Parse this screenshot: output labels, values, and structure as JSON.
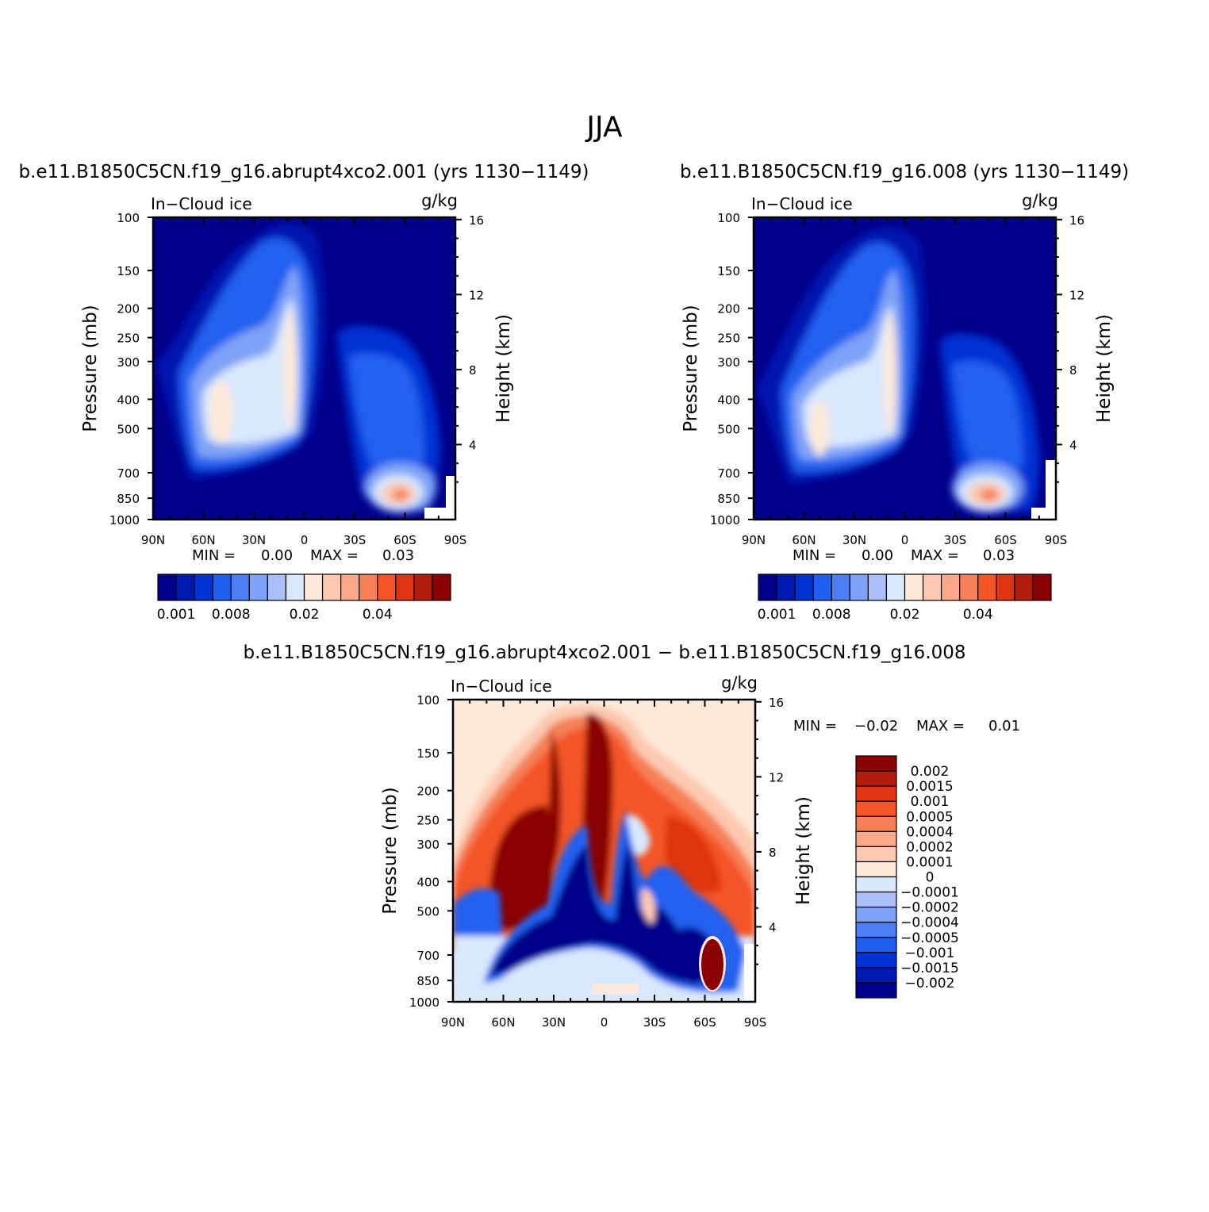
{
  "page_title": "JJA",
  "panels": [
    {
      "title": "b.e11.B1850C5CN.f19_g16.abrupt4xco2.001 (yrs 1130−1149)",
      "left_label": "In−Cloud ice",
      "right_label": "g/kg",
      "stats": {
        "min_label": "MIN =",
        "min_value": "0.00",
        "max_label": "MAX =",
        "max_value": "0.03"
      }
    },
    {
      "title": "b.e11.B1850C5CN.f19_g16.008 (yrs 1130−1149)",
      "left_label": "In−Cloud ice",
      "right_label": "g/kg",
      "stats": {
        "min_label": "MIN =",
        "min_value": "0.00",
        "max_label": "MAX =",
        "max_value": "0.03"
      }
    },
    {
      "title": "b.e11.B1850C5CN.f19_g16.abrupt4xco2.001 − b.e11.B1850C5CN.f19_g16.008",
      "left_label": "In−Cloud ice",
      "right_label": "g/kg",
      "stats": {
        "min_label": "MIN =",
        "min_value": "−0.02",
        "max_label": "MAX =",
        "max_value": "0.01"
      }
    }
  ],
  "axes": {
    "x_ticks": [
      "90N",
      "60N",
      "30N",
      "0",
      "30S",
      "60S",
      "90S"
    ],
    "y_label": "Pressure (mb)",
    "y_ticks": [
      "100",
      "150",
      "200",
      "250",
      "300",
      "400",
      "500",
      "700",
      "850",
      "1000"
    ],
    "y2_label": "Height (km)",
    "y2_ticks": [
      "16",
      "12",
      "8",
      "4"
    ]
  },
  "colorbars": {
    "horizontal": {
      "colors": [
        "#00008b",
        "#0019b0",
        "#0033d4",
        "#2060f0",
        "#4b80f5",
        "#7ea2f7",
        "#aabff8",
        "#d8e8fd",
        "#fee8d8",
        "#fcc9b0",
        "#fca888",
        "#f67f57",
        "#f45426",
        "#de3411",
        "#b41d0b",
        "#8b0000"
      ],
      "labels": [
        "0.001",
        "0.008",
        "0.02",
        "0.04"
      ]
    },
    "vertical": {
      "colors": [
        "#8b0000",
        "#b41d0b",
        "#de3411",
        "#f45426",
        "#f67f57",
        "#fca888",
        "#fcc9b0",
        "#fee8d8",
        "#d8e8fd",
        "#aabff8",
        "#7ea2f7",
        "#4b80f5",
        "#2060f0",
        "#0033d4",
        "#0019b0",
        "#00008b"
      ],
      "labels": [
        "0.002",
        "0.0015",
        "0.001",
        "0.0005",
        "0.0004",
        "0.0002",
        "0.0001",
        "0",
        "−0.0001",
        "−0.0002",
        "−0.0004",
        "−0.0005",
        "−0.001",
        "−0.0015",
        "−0.002"
      ]
    }
  },
  "chart_data": [
    {
      "type": "heatmap",
      "title": "b.e11.B1850C5CN.f19_g16.abrupt4xco2.001 (yrs 1130−1149)",
      "field": "In−Cloud ice",
      "units": "g/kg",
      "x_ticks": [
        "90N",
        "60N",
        "30N",
        "0",
        "30S",
        "60S",
        "90S"
      ],
      "y_ticks_mb": [
        100,
        150,
        200,
        250,
        300,
        400,
        500,
        700,
        850,
        1000
      ],
      "height_ticks_km": [
        16,
        12,
        8,
        4
      ],
      "min": 0.0,
      "max": 0.03,
      "colorbar_labels": [
        "0.001",
        "0.008",
        "0.02",
        "0.04"
      ]
    },
    {
      "type": "heatmap",
      "title": "b.e11.B1850C5CN.f19_g16.008 (yrs 1130−1149)",
      "field": "In−Cloud ice",
      "units": "g/kg",
      "x_ticks": [
        "90N",
        "60N",
        "30N",
        "0",
        "30S",
        "60S",
        "90S"
      ],
      "y_ticks_mb": [
        100,
        150,
        200,
        250,
        300,
        400,
        500,
        700,
        850,
        1000
      ],
      "height_ticks_km": [
        16,
        12,
        8,
        4
      ],
      "min": 0.0,
      "max": 0.03,
      "colorbar_labels": [
        "0.001",
        "0.008",
        "0.02",
        "0.04"
      ]
    },
    {
      "type": "heatmap",
      "title": "b.e11.B1850C5CN.f19_g16.abrupt4xco2.001 − b.e11.B1850C5CN.f19_g16.008",
      "field": "In−Cloud ice",
      "units": "g/kg",
      "x_ticks": [
        "90N",
        "60N",
        "30N",
        "0",
        "30S",
        "60S",
        "90S"
      ],
      "y_ticks_mb": [
        100,
        150,
        200,
        250,
        300,
        400,
        500,
        700,
        850,
        1000
      ],
      "height_ticks_km": [
        16,
        12,
        8,
        4
      ],
      "min": -0.02,
      "max": 0.01,
      "colorbar_labels": [
        "0.002",
        "0.0015",
        "0.001",
        "0.0005",
        "0.0004",
        "0.0002",
        "0.0001",
        "0",
        "−0.0001",
        "−0.0002",
        "−0.0004",
        "−0.0005",
        "−0.001",
        "−0.0015",
        "−0.002"
      ]
    }
  ]
}
